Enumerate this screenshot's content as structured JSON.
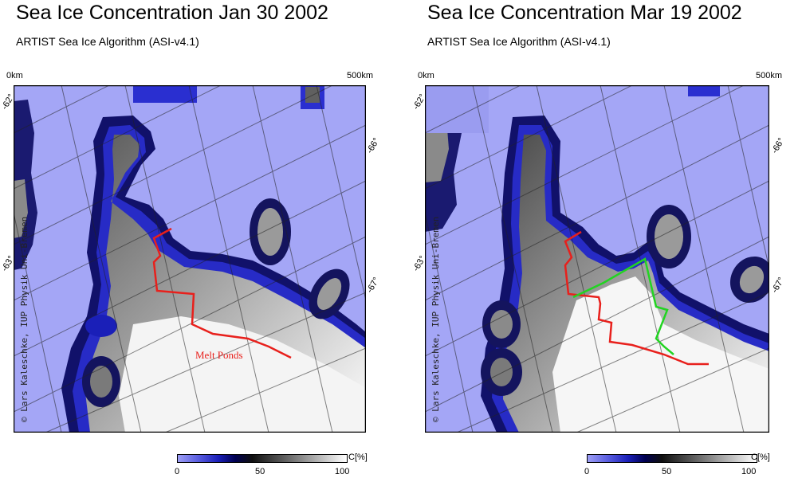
{
  "panels": [
    {
      "title": "Sea Ice Concentration Jan 30 2002",
      "subtitle": "ARTIST Sea Ice Algorithm (ASI-v4.1)",
      "scale_start": "0km",
      "scale_end": "500km",
      "lat_labels": [
        "-62°",
        "-63°",
        "-66°",
        "-67°"
      ],
      "credit": "© Lars Kaleschke, IUP Physik Uni-Bremen",
      "annotation": "Melt Ponds",
      "colorbar": {
        "unit": "C[%]",
        "ticks": [
          "0",
          "50",
          "100"
        ]
      }
    },
    {
      "title": "Sea Ice Concentration Mar 19 2002",
      "subtitle": "ARTIST Sea Ice Algorithm (ASI-v4.1)",
      "scale_start": "0km",
      "scale_end": "500km",
      "lat_labels": [
        "-62°",
        "-63°",
        "-66°",
        "-67°"
      ],
      "credit": "© Lars Kaleschke, IUP Physik Uni-Bremen",
      "colorbar": {
        "unit": "C[%]",
        "ticks": [
          "0",
          "50",
          "100"
        ]
      }
    }
  ],
  "colors": {
    "open_water": "#a4a6f6",
    "ice_edge": "#1a1fb8",
    "melt_line": "#e8201c",
    "green_line": "#22d422"
  }
}
